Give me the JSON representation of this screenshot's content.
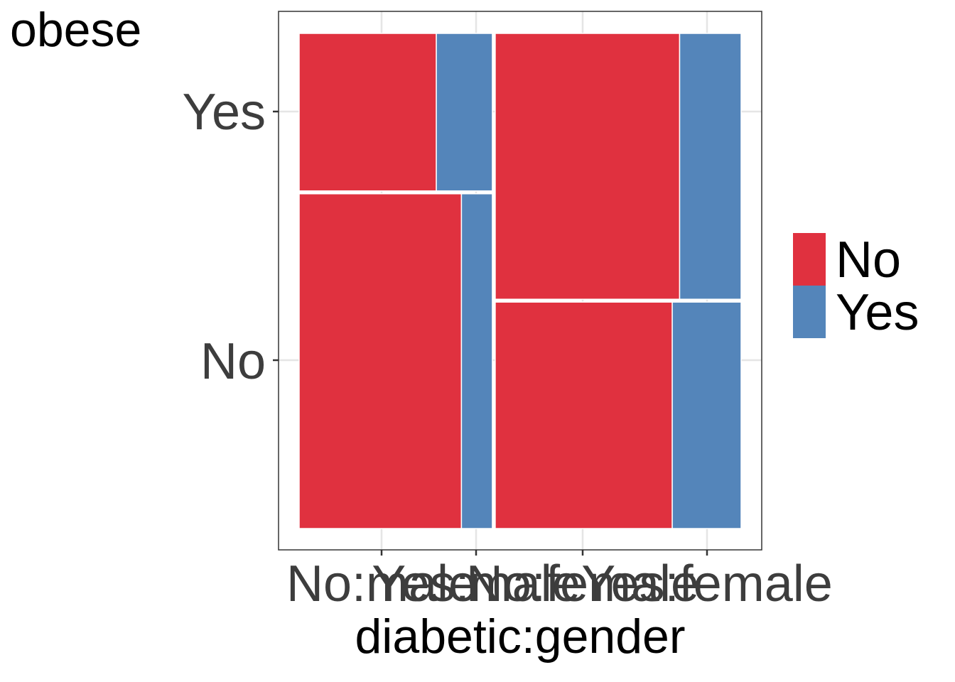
{
  "chart_data": {
    "type": "mosaic",
    "y_axis_title": "obese",
    "x_axis_title": "diabetic:gender",
    "y_tick_labels": [
      "Yes",
      "No"
    ],
    "x_tick_labels": [
      "No:male",
      "Yes:male",
      "No:female",
      "Yes:female"
    ],
    "fill_variable_levels": [
      "No",
      "Yes"
    ],
    "colors": {
      "No": "#E41A1C",
      "Yes": "#377EB8"
    },
    "columns": [
      {
        "obese": "No",
        "proportion": 0.44,
        "cells": [
          {
            "x_category": "No:male",
            "fill": "No",
            "proportion": 0.84
          },
          {
            "x_category": "Yes:male",
            "fill": "Yes",
            "proportion": 0.16
          }
        ]
      },
      {
        "obese": "Yes",
        "proportion": 0.56,
        "cells": [
          {
            "x_category": "No:female",
            "fill": "No",
            "proportion": 0.73
          },
          {
            "x_category": "Yes:female",
            "fill": "Yes",
            "proportion": 0.27
          }
        ]
      }
    ],
    "rows": [
      {
        "obese": "No",
        "proportion": 0.68,
        "cells": [
          {
            "fill": "No",
            "proportion": 0.84
          },
          {
            "fill": "Yes",
            "proportion": 0.16
          }
        ]
      },
      {
        "obese": "Yes",
        "proportion": 0.32,
        "cells": [
          {
            "fill": "No",
            "proportion": 0.72
          },
          {
            "fill": "Yes",
            "proportion": 0.28
          }
        ]
      }
    ],
    "grid": true,
    "legend_position": "right"
  }
}
